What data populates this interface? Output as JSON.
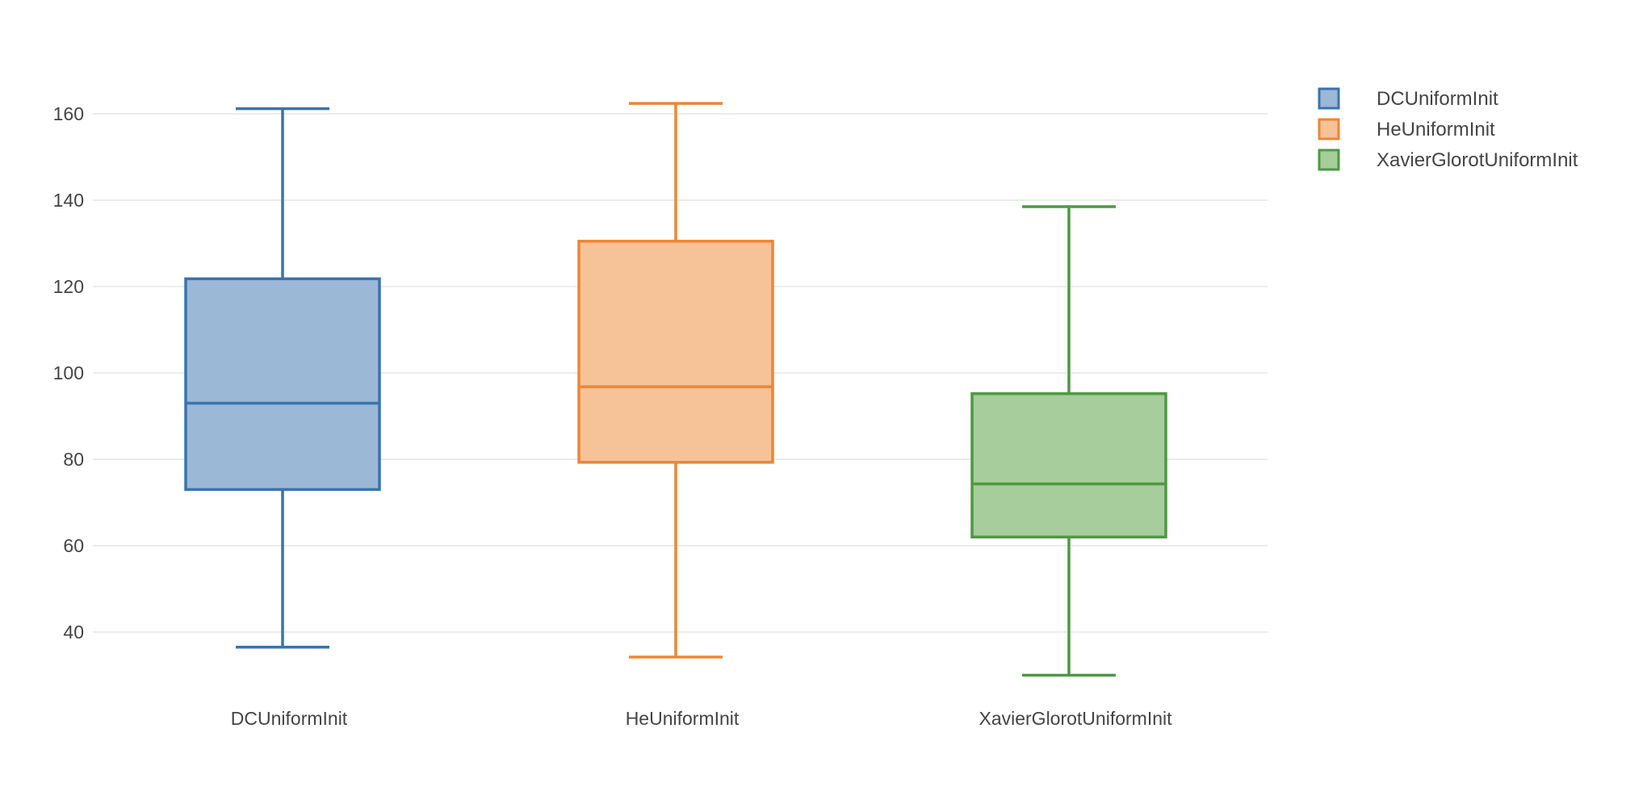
{
  "chart_data": {
    "type": "box",
    "title": "",
    "xlabel": "",
    "ylabel": "",
    "ylim": [
      25.0,
      170.0
    ],
    "yticks": [
      40,
      60,
      80,
      100,
      120,
      140,
      160
    ],
    "grid": true,
    "legend_position": "top-right",
    "categories": [
      "DCUniformInit",
      "HeUniformInit",
      "XavierGlorotUniformInit"
    ],
    "series": [
      {
        "name": "DCUniformInit",
        "color": "#3a73ad",
        "fill": "#9cb8d7",
        "min": 36.5,
        "q1": 73,
        "median": 93,
        "q3": 121.8,
        "max": 161.2
      },
      {
        "name": "HeUniformInit",
        "color": "#ef8533",
        "fill": "#f6c297",
        "min": 34.2,
        "q1": 79.3,
        "median": 96.8,
        "q3": 130.5,
        "max": 162.4
      },
      {
        "name": "XavierGlorotUniformInit",
        "color": "#4c9a41",
        "fill": "#a6cd9b",
        "min": 30,
        "q1": 62,
        "median": 74.3,
        "q3": 95.2,
        "max": 138.5
      }
    ]
  }
}
